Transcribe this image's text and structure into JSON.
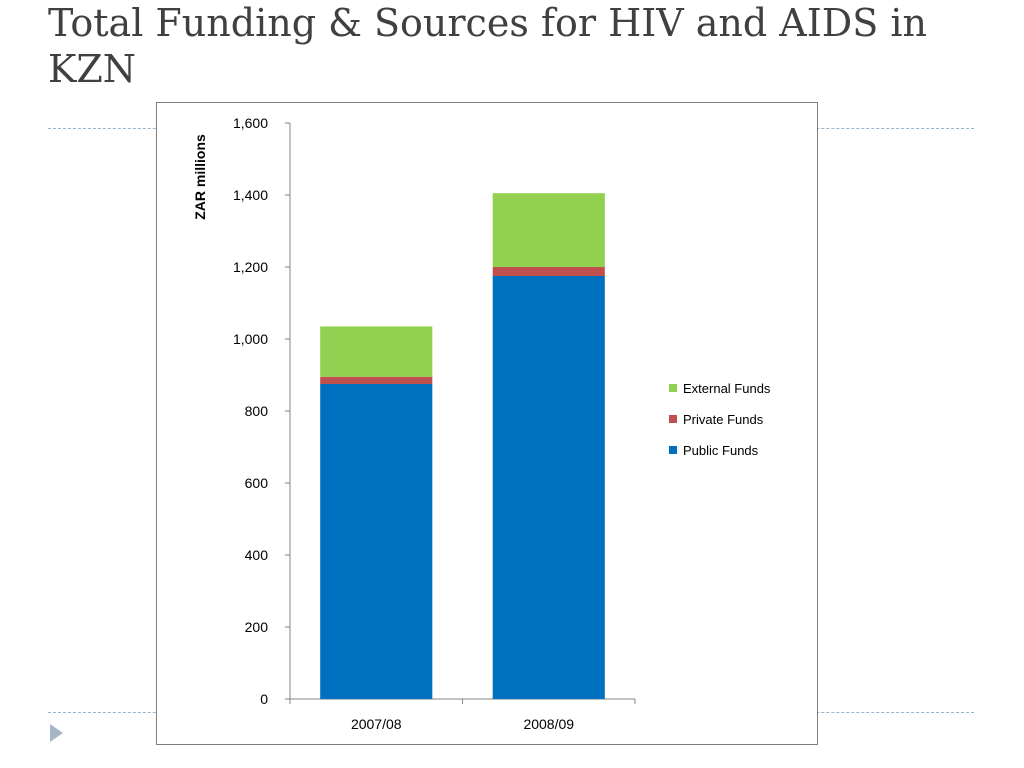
{
  "slide": {
    "title": "Total Funding & Sources for HIV and AIDS in KZN"
  },
  "colors": {
    "external": "#92d050",
    "private": "#c0504d",
    "public": "#0070c0",
    "bullet": "#a5b6c8"
  },
  "chart_data": {
    "type": "bar",
    "stacked": true,
    "title": "",
    "xlabel": "",
    "ylabel": "ZAR millions",
    "ylim": [
      0,
      1600
    ],
    "yticks": [
      0,
      200,
      400,
      600,
      800,
      1000,
      1200,
      1400,
      1600
    ],
    "ytick_labels": [
      "0",
      "200",
      "400",
      "600",
      "800",
      "1,000",
      "1,200",
      "1,400",
      "1,600"
    ],
    "categories": [
      "2007/08",
      "2008/09"
    ],
    "series": [
      {
        "name": "Public Funds",
        "color": "#0070c0",
        "values": [
          875,
          1175
        ]
      },
      {
        "name": "Private Funds",
        "color": "#c0504d",
        "values": [
          20,
          25
        ]
      },
      {
        "name": "External Funds",
        "color": "#92d050",
        "values": [
          140,
          205
        ]
      }
    ],
    "legend": {
      "placement": "right",
      "order": [
        "External Funds",
        "Private Funds",
        "Public Funds"
      ]
    },
    "grid": false
  }
}
